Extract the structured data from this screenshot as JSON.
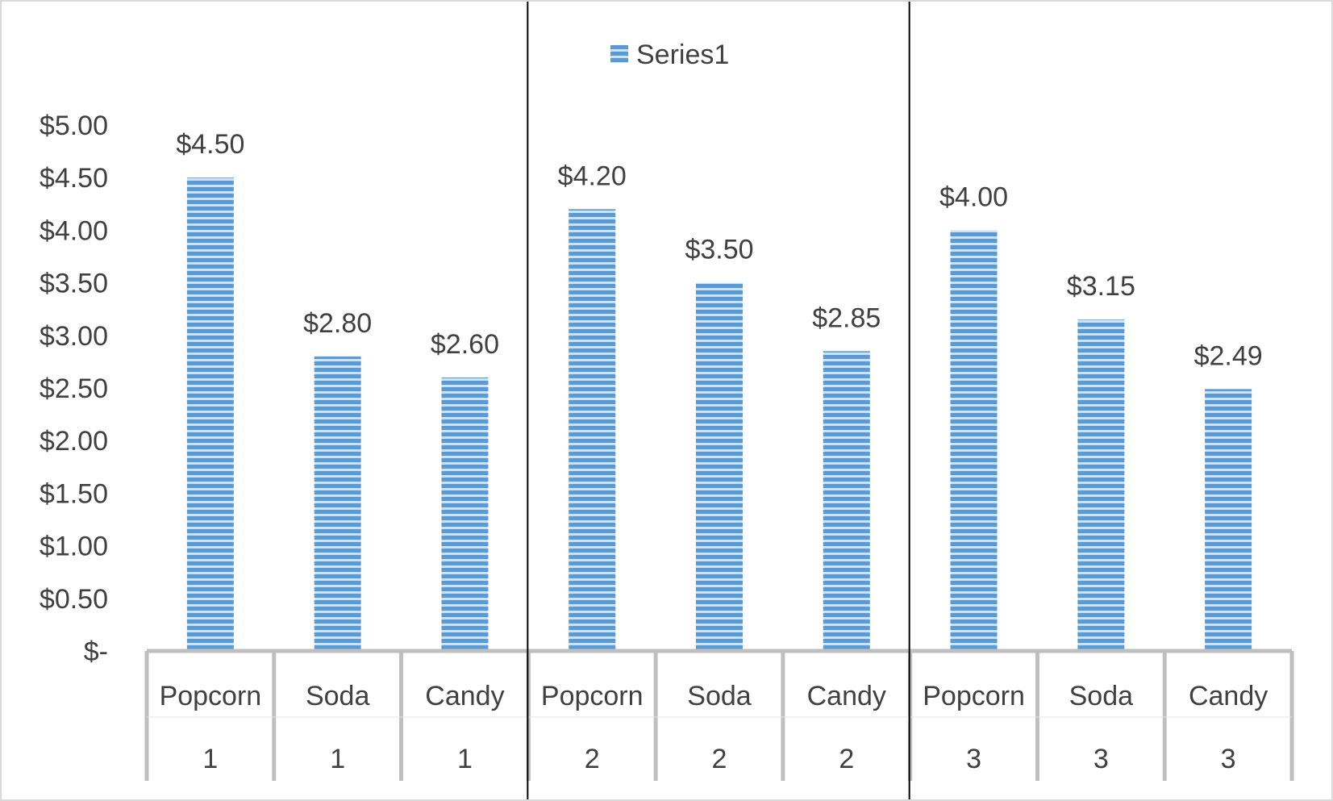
{
  "chart_data": {
    "type": "bar",
    "categories": [
      "Popcorn",
      "Soda",
      "Candy",
      "Popcorn",
      "Soda",
      "Candy",
      "Popcorn",
      "Soda",
      "Candy"
    ],
    "groups": [
      "1",
      "1",
      "1",
      "2",
      "2",
      "2",
      "3",
      "3",
      "3"
    ],
    "series": [
      {
        "name": "Series1",
        "values": [
          4.5,
          2.8,
          2.6,
          4.2,
          3.5,
          2.85,
          4.0,
          3.15,
          2.49
        ]
      }
    ],
    "data_labels": [
      "$4.50",
      "$2.80",
      "$2.60",
      "$4.20",
      "$3.50",
      "$2.85",
      "$4.00",
      "$3.15",
      "$2.49"
    ],
    "y_ticks": [
      {
        "value": 0,
        "label": "$-"
      },
      {
        "value": 0.5,
        "label": "$0.50"
      },
      {
        "value": 1.0,
        "label": "$1.00"
      },
      {
        "value": 1.5,
        "label": "$1.50"
      },
      {
        "value": 2.0,
        "label": "$2.00"
      },
      {
        "value": 2.5,
        "label": "$2.50"
      },
      {
        "value": 3.0,
        "label": "$3.00"
      },
      {
        "value": 3.5,
        "label": "$3.50"
      },
      {
        "value": 4.0,
        "label": "$4.00"
      },
      {
        "value": 4.5,
        "label": "$4.50"
      },
      {
        "value": 5.0,
        "label": "$5.00"
      }
    ],
    "ylim": [
      0,
      5
    ],
    "grid": false,
    "legend": "top-center",
    "colors": {
      "bar": "#5b9bd5",
      "bar_stripe": "#cfe2f3",
      "axis": "#bfbfbf",
      "divider": "#000000",
      "text": "#404040"
    },
    "title": "",
    "xlabel": "",
    "ylabel": ""
  }
}
